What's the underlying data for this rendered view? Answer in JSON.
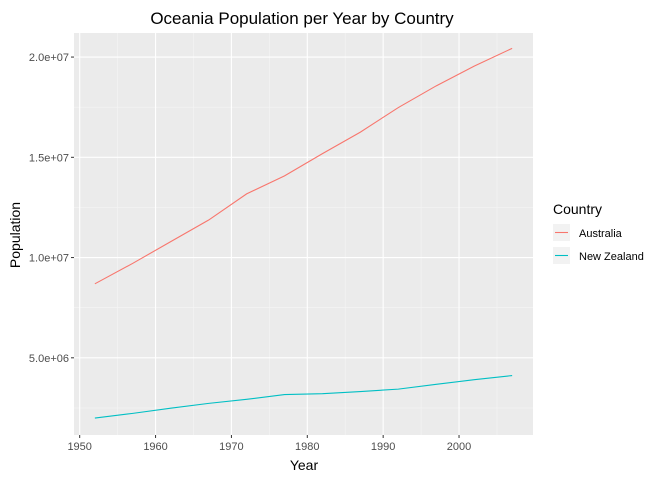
{
  "chart_data": {
    "type": "line",
    "title": "Oceania Population per Year by Country",
    "xlabel": "Year",
    "ylabel": "Population",
    "xlim": [
      1949.25,
      2009.75
    ],
    "ylim": [
      1150000,
      21200000
    ],
    "x_ticks": [
      1950,
      1960,
      1970,
      1980,
      1990,
      2000
    ],
    "x_tick_labels": [
      "1950",
      "1960",
      "1970",
      "1980",
      "1990",
      "2000"
    ],
    "y_ticks": [
      5000000,
      10000000,
      15000000,
      20000000
    ],
    "y_tick_labels": [
      "5.0e+06",
      "1.0e+07",
      "1.5e+07",
      "2.0e+07"
    ],
    "grid": true,
    "legend": {
      "title": "Country",
      "position": "right"
    },
    "x": [
      1952,
      1957,
      1962,
      1967,
      1972,
      1977,
      1982,
      1987,
      1992,
      1997,
      2002,
      2007
    ],
    "series": [
      {
        "name": "Australia",
        "color": "#F8766D",
        "values": [
          8691212,
          9712569,
          10794968,
          11872264,
          13177000,
          14074100,
          15184200,
          16257249,
          17481977,
          18565243,
          19546792,
          20434176
        ]
      },
      {
        "name": "New Zealand",
        "color": "#00BFC4",
        "values": [
          1994794,
          2229407,
          2488550,
          2728150,
          2929100,
          3164900,
          3210650,
          3317166,
          3437674,
          3676187,
          3908037,
          4115771
        ]
      }
    ]
  }
}
